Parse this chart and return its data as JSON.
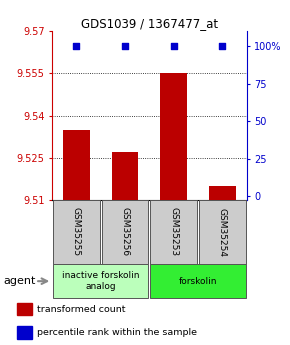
{
  "title": "GDS1039 / 1367477_at",
  "samples": [
    "GSM35255",
    "GSM35256",
    "GSM35253",
    "GSM35254"
  ],
  "bar_values": [
    9.535,
    9.527,
    9.555,
    9.515
  ],
  "percentile_values": [
    100,
    100,
    100,
    100
  ],
  "y_min": 9.51,
  "y_max": 9.57,
  "y_ticks": [
    9.51,
    9.525,
    9.54,
    9.555,
    9.57
  ],
  "y_tick_labels": [
    "9.51",
    "9.525",
    "9.54",
    "9.555",
    "9.57"
  ],
  "y2_ticks": [
    0,
    25,
    50,
    75,
    100
  ],
  "y2_tick_labels": [
    "0",
    "25",
    "50",
    "75",
    "100%"
  ],
  "bar_color": "#bb0000",
  "percentile_color": "#0000cc",
  "bar_width": 0.55,
  "groups": [
    {
      "label": "inactive forskolin\nanalog",
      "color": "#bbffbb",
      "samples": [
        0,
        1
      ]
    },
    {
      "label": "forskolin",
      "color": "#33ee33",
      "samples": [
        2,
        3
      ]
    }
  ],
  "agent_label": "agent",
  "legend_items": [
    {
      "color": "#bb0000",
      "label": "transformed count"
    },
    {
      "color": "#0000cc",
      "label": "percentile rank within the sample"
    }
  ],
  "title_color": "#000000",
  "left_axis_color": "#cc0000",
  "right_axis_color": "#0000cc",
  "sample_box_color": "#cccccc",
  "sample_box_edge_color": "#555555"
}
